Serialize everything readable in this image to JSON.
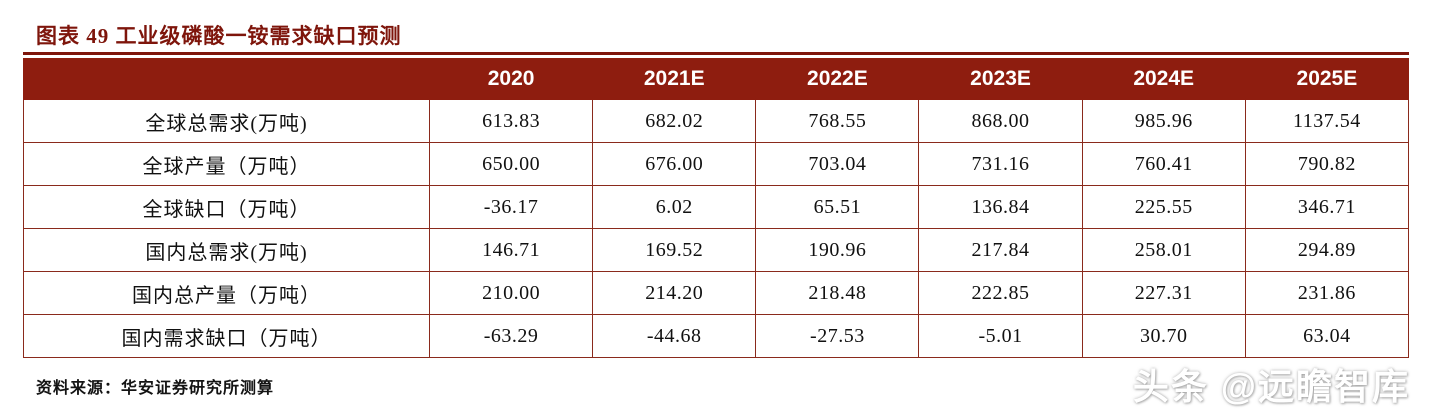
{
  "figure": {
    "title": "图表 49 工业级磷酸一铵需求缺口预测",
    "source": "资料来源：华安证券研究所测算",
    "watermark": "头条 @远瞻智库"
  },
  "colors": {
    "accent_dark_red": "#8e1d0f",
    "title_red": "#7e150b",
    "header_text": "#ffffff",
    "body_text": "#111111"
  },
  "chart_data": {
    "type": "table",
    "title": "工业级磷酸一铵需求缺口预测",
    "unit": "万吨",
    "columns": [
      "",
      "2020",
      "2021E",
      "2022E",
      "2023E",
      "2024E",
      "2025E"
    ],
    "rows": [
      {
        "label": "全球总需求(万吨)",
        "values": [
          "613.83",
          "682.02",
          "768.55",
          "868.00",
          "985.96",
          "1137.54"
        ]
      },
      {
        "label": "全球产量（万吨）",
        "values": [
          "650.00",
          "676.00",
          "703.04",
          "731.16",
          "760.41",
          "790.82"
        ]
      },
      {
        "label": "全球缺口（万吨）",
        "values": [
          "-36.17",
          "6.02",
          "65.51",
          "136.84",
          "225.55",
          "346.71"
        ]
      },
      {
        "label": "国内总需求(万吨)",
        "values": [
          "146.71",
          "169.52",
          "190.96",
          "217.84",
          "258.01",
          "294.89"
        ]
      },
      {
        "label": "国内总产量（万吨）",
        "values": [
          "210.00",
          "214.20",
          "218.48",
          "222.85",
          "227.31",
          "231.86"
        ]
      },
      {
        "label": "国内需求缺口（万吨）",
        "values": [
          "-63.29",
          "-44.68",
          "-27.53",
          "-5.01",
          "30.70",
          "63.04"
        ]
      }
    ]
  }
}
